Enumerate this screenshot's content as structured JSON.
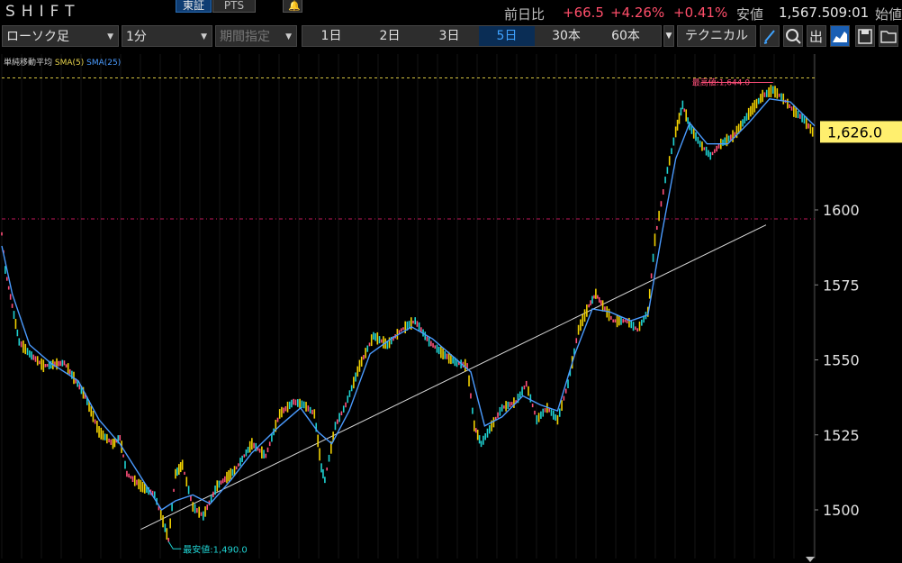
{
  "header": {
    "ticker": "SHIFT",
    "market_tabs": [
      "東証",
      "PTS"
    ],
    "change_label": "前日比",
    "change_value": "+66.5",
    "change_pct": "+4.26%",
    "change_pct2": "+0.41%",
    "price_label": "安値",
    "price_value": "1,567.5",
    "time": "09:01",
    "open_label": "始値"
  },
  "toolbar": {
    "chart_type": "ローソク足",
    "interval": "1分",
    "period": "期間指定",
    "ranges": [
      "1日",
      "2日",
      "3日",
      "5日",
      "30本",
      "60本"
    ],
    "active_range": "5日",
    "technical": "テクニカル"
  },
  "legend": {
    "label": "単純移動平均",
    "sma5": "SMA(5)",
    "sma25": "SMA(25)"
  },
  "chart_data": {
    "type": "line",
    "ylim": [
      1487,
      1632
    ],
    "y_ticks": [
      1500,
      1525,
      1550,
      1575,
      1600
    ],
    "y_tick_labels": [
      "1500",
      "1525",
      "1550",
      "1575",
      "1600"
    ],
    "current_price": 1626.0,
    "current_price_label": "1,626.0",
    "high_label": "最高値:1,644.0",
    "low_label": "最安値:1,490.0",
    "price_path": [
      [
        0,
        1592
      ],
      [
        1,
        1580
      ],
      [
        3,
        1568
      ],
      [
        5,
        1556
      ],
      [
        8,
        1552
      ],
      [
        12,
        1548
      ],
      [
        18,
        1549
      ],
      [
        24,
        1538
      ],
      [
        28,
        1526
      ],
      [
        32,
        1522
      ],
      [
        34,
        1524
      ],
      [
        36,
        1512
      ],
      [
        40,
        1508
      ],
      [
        44,
        1505
      ],
      [
        47,
        1494
      ],
      [
        48,
        1490
      ],
      [
        50,
        1512
      ],
      [
        52,
        1515
      ],
      [
        55,
        1501
      ],
      [
        58,
        1498
      ],
      [
        62,
        1508
      ],
      [
        67,
        1513
      ],
      [
        72,
        1522
      ],
      [
        76,
        1518
      ],
      [
        80,
        1532
      ],
      [
        84,
        1536
      ],
      [
        87,
        1535
      ],
      [
        90,
        1532
      ],
      [
        92,
        1514
      ],
      [
        93,
        1510
      ],
      [
        96,
        1528
      ],
      [
        99,
        1535
      ],
      [
        103,
        1548
      ],
      [
        107,
        1558
      ],
      [
        111,
        1555
      ],
      [
        115,
        1560
      ],
      [
        119,
        1563
      ],
      [
        123,
        1556
      ],
      [
        127,
        1552
      ],
      [
        131,
        1549
      ],
      [
        134,
        1548
      ],
      [
        136,
        1528
      ],
      [
        138,
        1522
      ],
      [
        141,
        1528
      ],
      [
        144,
        1534
      ],
      [
        148,
        1536
      ],
      [
        151,
        1542
      ],
      [
        154,
        1530
      ],
      [
        157,
        1534
      ],
      [
        160,
        1530
      ],
      [
        163,
        1542
      ],
      [
        166,
        1560
      ],
      [
        169,
        1568
      ],
      [
        171,
        1572
      ],
      [
        173,
        1568
      ],
      [
        176,
        1563
      ],
      [
        180,
        1563
      ],
      [
        183,
        1560
      ],
      [
        186,
        1566
      ],
      [
        188,
        1590
      ],
      [
        191,
        1610
      ],
      [
        194,
        1626
      ],
      [
        196,
        1635
      ],
      [
        198,
        1628
      ],
      [
        201,
        1622
      ],
      [
        204,
        1618
      ],
      [
        207,
        1622
      ],
      [
        211,
        1625
      ],
      [
        215,
        1632
      ],
      [
        219,
        1638
      ],
      [
        222,
        1640
      ],
      [
        225,
        1637
      ],
      [
        228,
        1633
      ],
      [
        231,
        1630
      ],
      [
        234,
        1625
      ]
    ],
    "sma5": [
      [
        0,
        1588
      ],
      [
        3,
        1572
      ],
      [
        8,
        1555
      ],
      [
        14,
        1549
      ],
      [
        22,
        1543
      ],
      [
        28,
        1530
      ],
      [
        34,
        1522
      ],
      [
        40,
        1511
      ],
      [
        46,
        1500
      ],
      [
        50,
        1503
      ],
      [
        55,
        1505
      ],
      [
        60,
        1502
      ],
      [
        66,
        1510
      ],
      [
        72,
        1519
      ],
      [
        80,
        1528
      ],
      [
        86,
        1534
      ],
      [
        91,
        1526
      ],
      [
        95,
        1522
      ],
      [
        100,
        1533
      ],
      [
        106,
        1552
      ],
      [
        112,
        1557
      ],
      [
        118,
        1561
      ],
      [
        124,
        1557
      ],
      [
        130,
        1551
      ],
      [
        135,
        1546
      ],
      [
        139,
        1528
      ],
      [
        144,
        1531
      ],
      [
        150,
        1538
      ],
      [
        155,
        1535
      ],
      [
        160,
        1533
      ],
      [
        165,
        1552
      ],
      [
        170,
        1567
      ],
      [
        175,
        1566
      ],
      [
        181,
        1563
      ],
      [
        186,
        1565
      ],
      [
        190,
        1592
      ],
      [
        194,
        1617
      ],
      [
        198,
        1629
      ],
      [
        203,
        1622
      ],
      [
        209,
        1622
      ],
      [
        215,
        1629
      ],
      [
        221,
        1637
      ],
      [
        227,
        1636
      ],
      [
        234,
        1628
      ]
    ],
    "trendline": [
      [
        40,
        1493.5
      ],
      [
        220,
        1595
      ]
    ],
    "high_ref": 1644,
    "low_ref": 1490,
    "prev_close_ref": 1597
  },
  "colors": {
    "up": "#ff4f7a",
    "down": "#1fd2d2",
    "neutral": "#f0d000",
    "sma5": "#e8d44d",
    "sma25": "#4a9bff",
    "accent": "#ffef6e"
  }
}
